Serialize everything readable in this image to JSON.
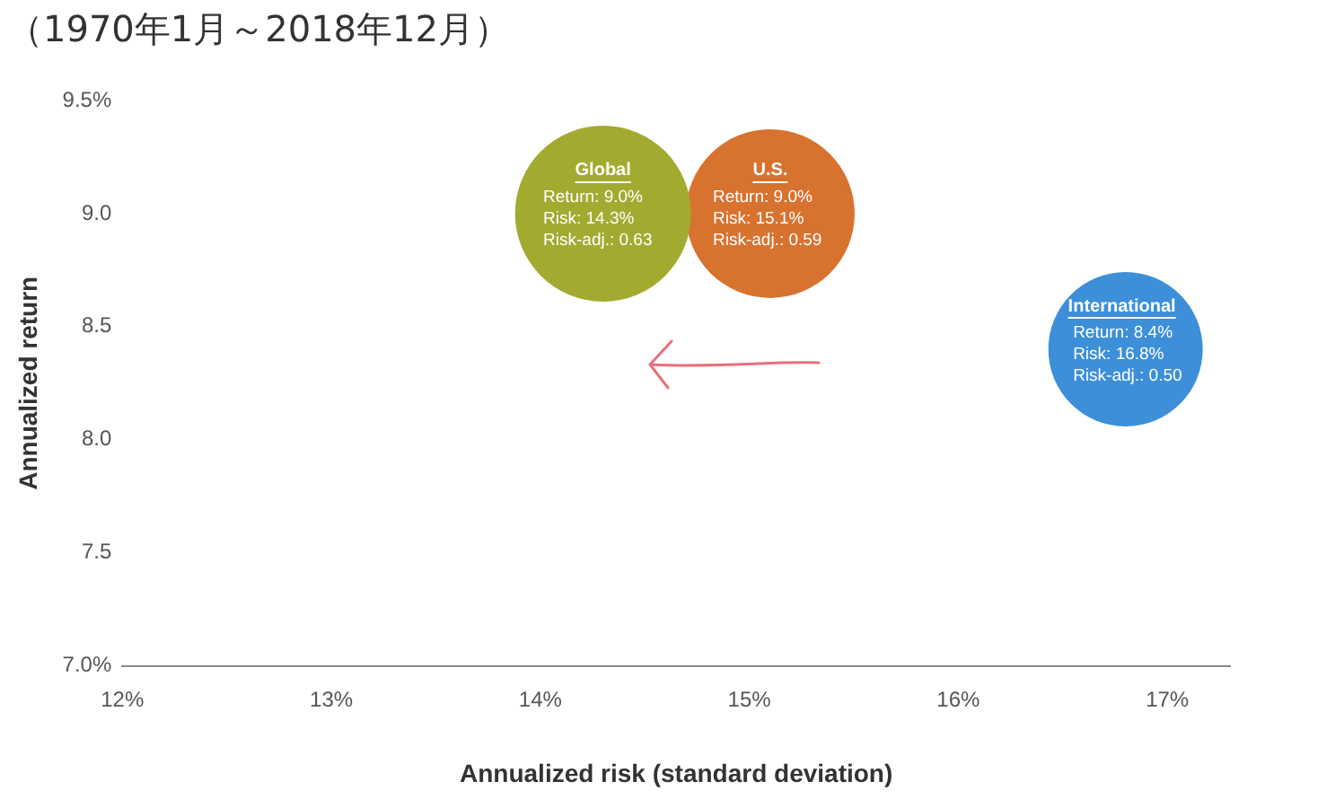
{
  "chart_data": {
    "type": "bubble",
    "title": "（1970年1月～2018年12月）",
    "xlabel": "Annualized risk (standard deviation)",
    "ylabel": "Annualized return",
    "series": [
      {
        "name": "Global",
        "color": "#a3aa30",
        "x": [
          14.3
        ],
        "values": [
          9.0
        ],
        "sizes": [
          1
        ],
        "value_labels": [
          "Return: 9.0%\nRisk: 14.3%\nRisk-adj.: 0.63"
        ]
      },
      {
        "name": "U.S.",
        "color": "#d8722f",
        "x": [
          15.1
        ],
        "values": [
          9.0
        ],
        "sizes": [
          0.92
        ],
        "value_labels": [
          "Return: 9.0%\nRisk: 15.1%\nRisk-adj.: 0.59"
        ]
      },
      {
        "name": "International",
        "color": "#3c8fd8",
        "x": [
          16.8
        ],
        "values": [
          8.4
        ],
        "sizes": [
          0.77
        ],
        "value_labels": [
          "Return: 8.4%\nRisk: 16.8%\nRisk-adj.: 0.50"
        ]
      }
    ],
    "xlim": [
      12,
      17.3
    ],
    "xticks": [
      {
        "value": 12,
        "label": "12%"
      },
      {
        "value": 13,
        "label": "13%"
      },
      {
        "value": 14,
        "label": "14%"
      },
      {
        "value": 15,
        "label": "15%"
      },
      {
        "value": 16,
        "label": "16%"
      },
      {
        "value": 17,
        "label": "17%"
      }
    ],
    "ylim": [
      7,
      9.5
    ],
    "yticks": [
      {
        "value": 7,
        "label": "7.0%"
      },
      {
        "value": 7.5,
        "label": "7.5"
      },
      {
        "value": 8,
        "label": "8.0"
      },
      {
        "value": 8.5,
        "label": "8.5"
      },
      {
        "value": 9,
        "label": "9.0"
      },
      {
        "value": 9.5,
        "label": "9.5%"
      }
    ],
    "grid": false,
    "legend": false
  }
}
